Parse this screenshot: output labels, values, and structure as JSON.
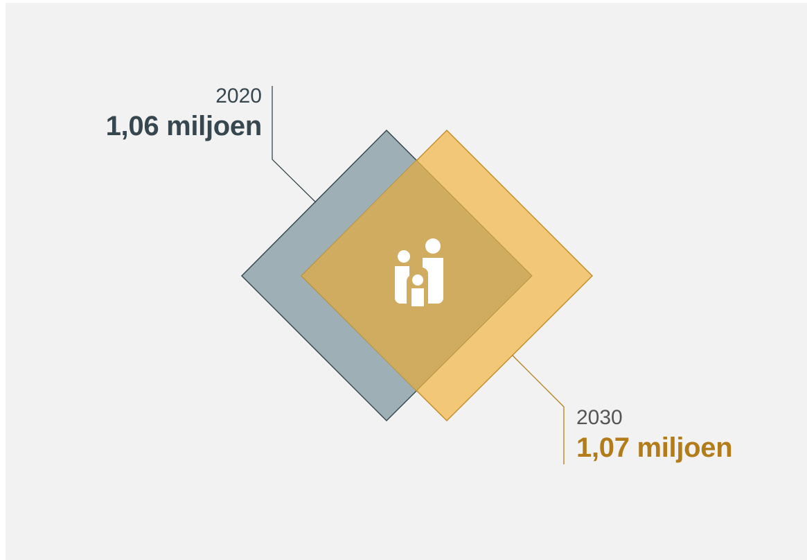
{
  "items": [
    {
      "year": "2020",
      "value": "1,06 miljoen",
      "color": "#9eb0b6",
      "stroke": "#37474f"
    },
    {
      "year": "2030",
      "value": "1,07 miljoen",
      "color": "#f2c878",
      "stroke": "#c28f2c"
    }
  ],
  "center_icon": "family-icon",
  "overlap_color": "#cfac5f"
}
